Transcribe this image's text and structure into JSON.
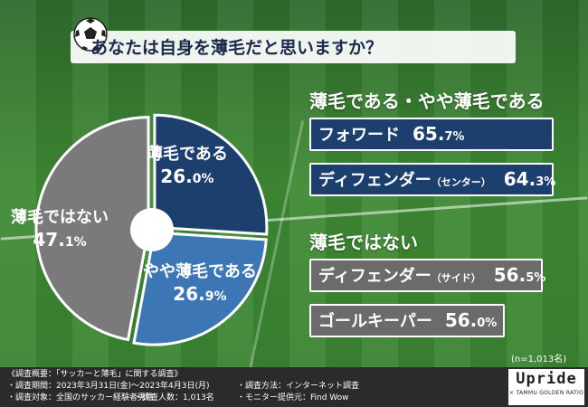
{
  "title": "あなたは自身を薄毛だと思いますか？",
  "chart_data": [
    {
      "type": "pie",
      "slices": [
        {
          "label": "薄毛である",
          "value": 26.0,
          "value_text": "26.",
          "value_dec": "0%",
          "color": "#1c3f6e"
        },
        {
          "label": "やや薄毛である",
          "value": 26.9,
          "value_text": "26.",
          "value_dec": "9%",
          "color": "#3d76b5"
        },
        {
          "label": "薄毛ではない",
          "value": 47.1,
          "value_text": "47.",
          "value_dec": "1%",
          "color": "#7a7a7a"
        }
      ],
      "start_angle_deg": 0,
      "direction": "clockwise",
      "n_note": "(n=1,013名)"
    },
    {
      "type": "bar",
      "groups": [
        {
          "heading": "薄毛である・やや薄毛である",
          "color": "#1c3f6e",
          "items": [
            {
              "label": "フォワード",
              "sub": "",
              "value": 65.7,
              "int": "65.",
              "dec": "7%"
            },
            {
              "label": "ディフェンダー",
              "sub": "（センター）",
              "value": 64.3,
              "int": "64.",
              "dec": "3%"
            }
          ]
        },
        {
          "heading": "薄毛ではない",
          "color": "#6b6b6b",
          "items": [
            {
              "label": "ディフェンダー",
              "sub": "（サイド）",
              "value": 56.5,
              "int": "56.",
              "dec": "5%"
            },
            {
              "label": "ゴールキーパー",
              "sub": "",
              "value": 56.0,
              "int": "56.",
              "dec": "0%"
            }
          ]
        }
      ]
    }
  ],
  "footer": {
    "line1": "《調査概要：「サッカーと薄毛」に関する調査》",
    "period": "・調査期間：2023年3月31日(金)～2023年4月3日(月)",
    "method": "・調査方法：インターネット調査",
    "target": "・調査対象：全国のサッカー経験者男性",
    "count": "・調査人数：1,013名",
    "provider": "・モニター提供元：Find Wow"
  },
  "logo": {
    "main": "Upride",
    "tag": "× TAMMU GOLDEN RATIO"
  },
  "colors": {
    "dark_blue": "#1c3f6e",
    "mid_blue": "#3d76b5",
    "gray": "#7a7a7a",
    "grass": "#3a8331"
  }
}
